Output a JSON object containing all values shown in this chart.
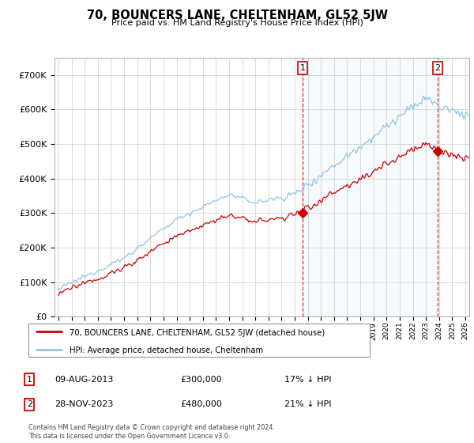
{
  "title": "70, BOUNCERS LANE, CHELTENHAM, GL52 5JW",
  "subtitle": "Price paid vs. HM Land Registry's House Price Index (HPI)",
  "ylim": [
    0,
    750000
  ],
  "yticks": [
    0,
    100000,
    200000,
    300000,
    400000,
    500000,
    600000,
    700000
  ],
  "hpi_color": "#92c5de",
  "hpi_fill_color": "#ddeef6",
  "price_color": "#cc0000",
  "transaction1_year": 2013.6,
  "transaction1_price": 300000,
  "transaction1_date": "09-AUG-2013",
  "transaction1_label": "17% ↓ HPI",
  "transaction2_year": 2023.9,
  "transaction2_price": 480000,
  "transaction2_date": "28-NOV-2023",
  "transaction2_label": "21% ↓ HPI",
  "legend_address": "70, BOUNCERS LANE, CHELTENHAM, GL52 5JW (detached house)",
  "legend_hpi": "HPI: Average price, detached house, Cheltenham",
  "footnote": "Contains HM Land Registry data © Crown copyright and database right 2024.\nThis data is licensed under the Open Government Licence v3.0.",
  "background_color": "#ffffff",
  "grid_color": "#cccccc",
  "x_start_year": 1995,
  "x_end_year": 2026
}
